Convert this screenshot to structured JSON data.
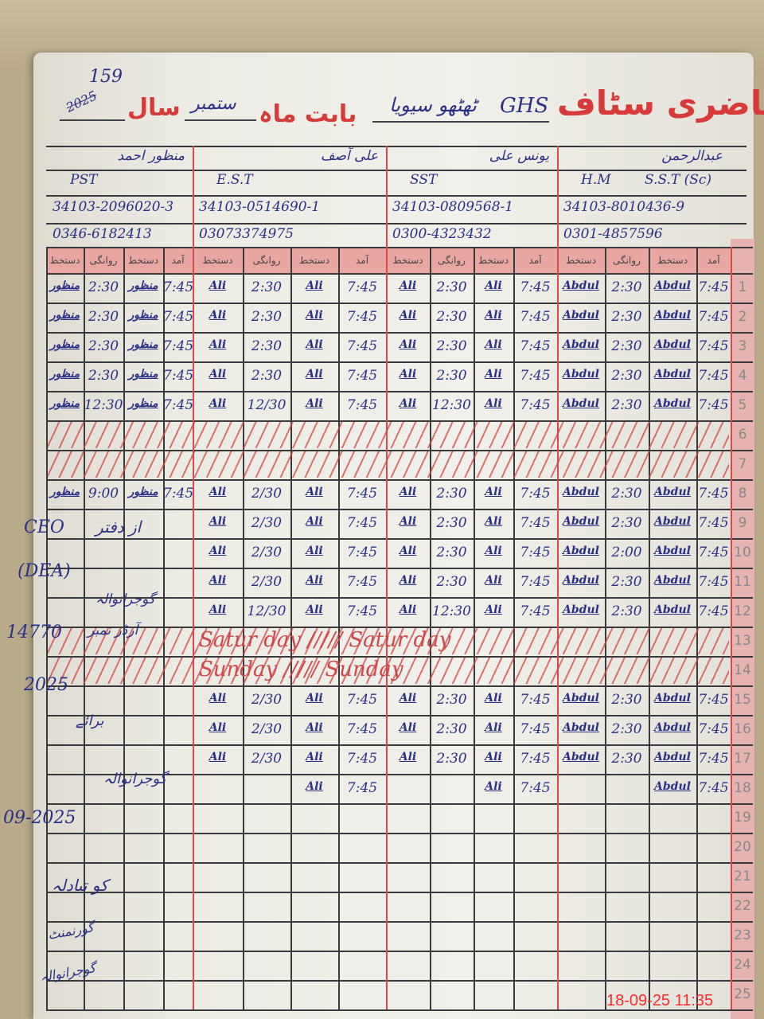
{
  "page_number": "159",
  "page_year_note": "2025",
  "title": {
    "main": "حاضری سٹاف",
    "school_prefix": "GHS",
    "school_name": "ٹھٹھو سیویا",
    "month_label": "بابت ماہ",
    "month": "ستمبر",
    "year_label": "سال"
  },
  "staff": [
    {
      "name": "منظور احمد",
      "designation": "PST",
      "designation2": "",
      "cnic": "34103-2096020-3",
      "phone": "0346-6182413"
    },
    {
      "name": "علی آصف",
      "designation": "E.S.T",
      "designation2": "",
      "cnic": "34103-0514690-1",
      "phone": "03073374975"
    },
    {
      "name": "یونس علی",
      "designation": "SST",
      "designation2": "",
      "cnic": "34103-0809568-1",
      "phone": "0300-4323432"
    },
    {
      "name": "عبدالرحمن",
      "designation": "H.M",
      "designation2": "S.S.T (Sc)",
      "cnic": "34103-8010436-9",
      "phone": "0301-4857596"
    }
  ],
  "column_headers": [
    "دستخط",
    "روانگی",
    "دستخط",
    "آمد"
  ],
  "rows": [
    {
      "day": "1",
      "cells": [
        "منظور",
        "2:30",
        "منظور",
        "7:45",
        "Ali",
        "2:30",
        "Ali",
        "7:45",
        "Ali",
        "2:30",
        "Ali",
        "7:45",
        "Abdul",
        "2:30",
        "Abdul",
        "7:45"
      ]
    },
    {
      "day": "2",
      "cells": [
        "منظور",
        "2:30",
        "منظور",
        "7:45",
        "Ali",
        "2:30",
        "Ali",
        "7:45",
        "Ali",
        "2:30",
        "Ali",
        "7:45",
        "Abdul",
        "2:30",
        "Abdul",
        "7:45"
      ]
    },
    {
      "day": "3",
      "cells": [
        "منظور",
        "2:30",
        "منظور",
        "7:45",
        "Ali",
        "2:30",
        "Ali",
        "7:45",
        "Ali",
        "2:30",
        "Ali",
        "7:45",
        "Abdul",
        "2:30",
        "Abdul",
        "7:45"
      ]
    },
    {
      "day": "4",
      "cells": [
        "منظور",
        "2:30",
        "منظور",
        "7:45",
        "Ali",
        "2:30",
        "Ali",
        "7:45",
        "Ali",
        "2:30",
        "Ali",
        "7:45",
        "Abdul",
        "2:30",
        "Abdul",
        "7:45"
      ]
    },
    {
      "day": "5",
      "cells": [
        "منظور",
        "12:30",
        "منظور",
        "7:45",
        "Ali",
        "12/30",
        "Ali",
        "7:45",
        "Ali",
        "12:30",
        "Ali",
        "7:45",
        "Abdul",
        "2:30",
        "Abdul",
        "7:45"
      ]
    },
    {
      "day": "6",
      "status": "crossed",
      "note": ""
    },
    {
      "day": "7",
      "status": "crossed",
      "note": ""
    },
    {
      "day": "8",
      "cells": [
        "منظور",
        "9:00",
        "منظور",
        "7:45",
        "Ali",
        "2/30",
        "Ali",
        "7:45",
        "Ali",
        "2:30",
        "Ali",
        "7:45",
        "Abdul",
        "2:30",
        "Abdul",
        "7:45"
      ]
    },
    {
      "day": "9",
      "cells": [
        "",
        "",
        "",
        "",
        "Ali",
        "2/30",
        "Ali",
        "7:45",
        "Ali",
        "2:30",
        "Ali",
        "7:45",
        "Abdul",
        "2:30",
        "Abdul",
        "7:45"
      ]
    },
    {
      "day": "10",
      "cells": [
        "",
        "",
        "",
        "",
        "Ali",
        "2/30",
        "Ali",
        "7:45",
        "Ali",
        "2:30",
        "Ali",
        "7:45",
        "Abdul",
        "2:00",
        "Abdul",
        "7:45"
      ]
    },
    {
      "day": "11",
      "cells": [
        "",
        "",
        "",
        "",
        "Ali",
        "2/30",
        "Ali",
        "7:45",
        "Ali",
        "2:30",
        "Ali",
        "7:45",
        "Abdul",
        "2:30",
        "Abdul",
        "7:45"
      ]
    },
    {
      "day": "12",
      "cells": [
        "",
        "",
        "",
        "",
        "Ali",
        "12/30",
        "Ali",
        "7:45",
        "Ali",
        "12:30",
        "Ali",
        "7:45",
        "Abdul",
        "2:30",
        "Abdul",
        "7:45"
      ]
    },
    {
      "day": "13",
      "status": "holiday",
      "note": "Satur day ///// Satur day"
    },
    {
      "day": "14",
      "status": "holiday",
      "note": "Sunday ///// Sunday"
    },
    {
      "day": "15",
      "cells": [
        "",
        "",
        "",
        "",
        "Ali",
        "2/30",
        "Ali",
        "7:45",
        "Ali",
        "2:30",
        "Ali",
        "7:45",
        "Abdul",
        "2:30",
        "Abdul",
        "7:45"
      ]
    },
    {
      "day": "16",
      "cells": [
        "",
        "",
        "",
        "",
        "Ali",
        "2/30",
        "Ali",
        "7:45",
        "Ali",
        "2:30",
        "Ali",
        "7:45",
        "Abdul",
        "2:30",
        "Abdul",
        "7:45"
      ]
    },
    {
      "day": "17",
      "cells": [
        "",
        "",
        "",
        "",
        "Ali",
        "2/30",
        "Ali",
        "7:45",
        "Ali",
        "2:30",
        "Ali",
        "7:45",
        "Abdul",
        "2:30",
        "Abdul",
        "7:45"
      ]
    },
    {
      "day": "18",
      "cells": [
        "",
        "",
        "",
        "",
        "",
        "",
        "Ali",
        "7:45",
        "",
        "",
        "Ali",
        "7:45",
        "",
        "",
        "Abdul",
        "7:45"
      ]
    },
    {
      "day": "19",
      "cells": []
    },
    {
      "day": "20",
      "cells": []
    },
    {
      "day": "21",
      "cells": []
    },
    {
      "day": "22",
      "cells": []
    },
    {
      "day": "23",
      "cells": []
    },
    {
      "day": "24",
      "cells": []
    },
    {
      "day": "25",
      "cells": []
    }
  ],
  "margin_notes": {
    "ceo": "CEO",
    "office": "از دفتر",
    "dea": "(DEA)",
    "gujranwala1": "گوجرانوالہ",
    "number": "14770",
    "number_label": "آرڈر نمبر",
    "year": "2025",
    "bara": "برائے",
    "gujranwala2": "گوجرانوالہ",
    "date": "09-2025",
    "kohat": "کو تبادلہ",
    "govt": "گورنمنٹ",
    "last": "گوجرانوالہ"
  },
  "timestamp": "18-09-25  11:35",
  "colors": {
    "ink": "#2b2f86",
    "red_ink": "#d83a3a",
    "header_pink": "#e8a7a2",
    "paper": "#eeede6",
    "timestamp": "#ff2a2a"
  }
}
